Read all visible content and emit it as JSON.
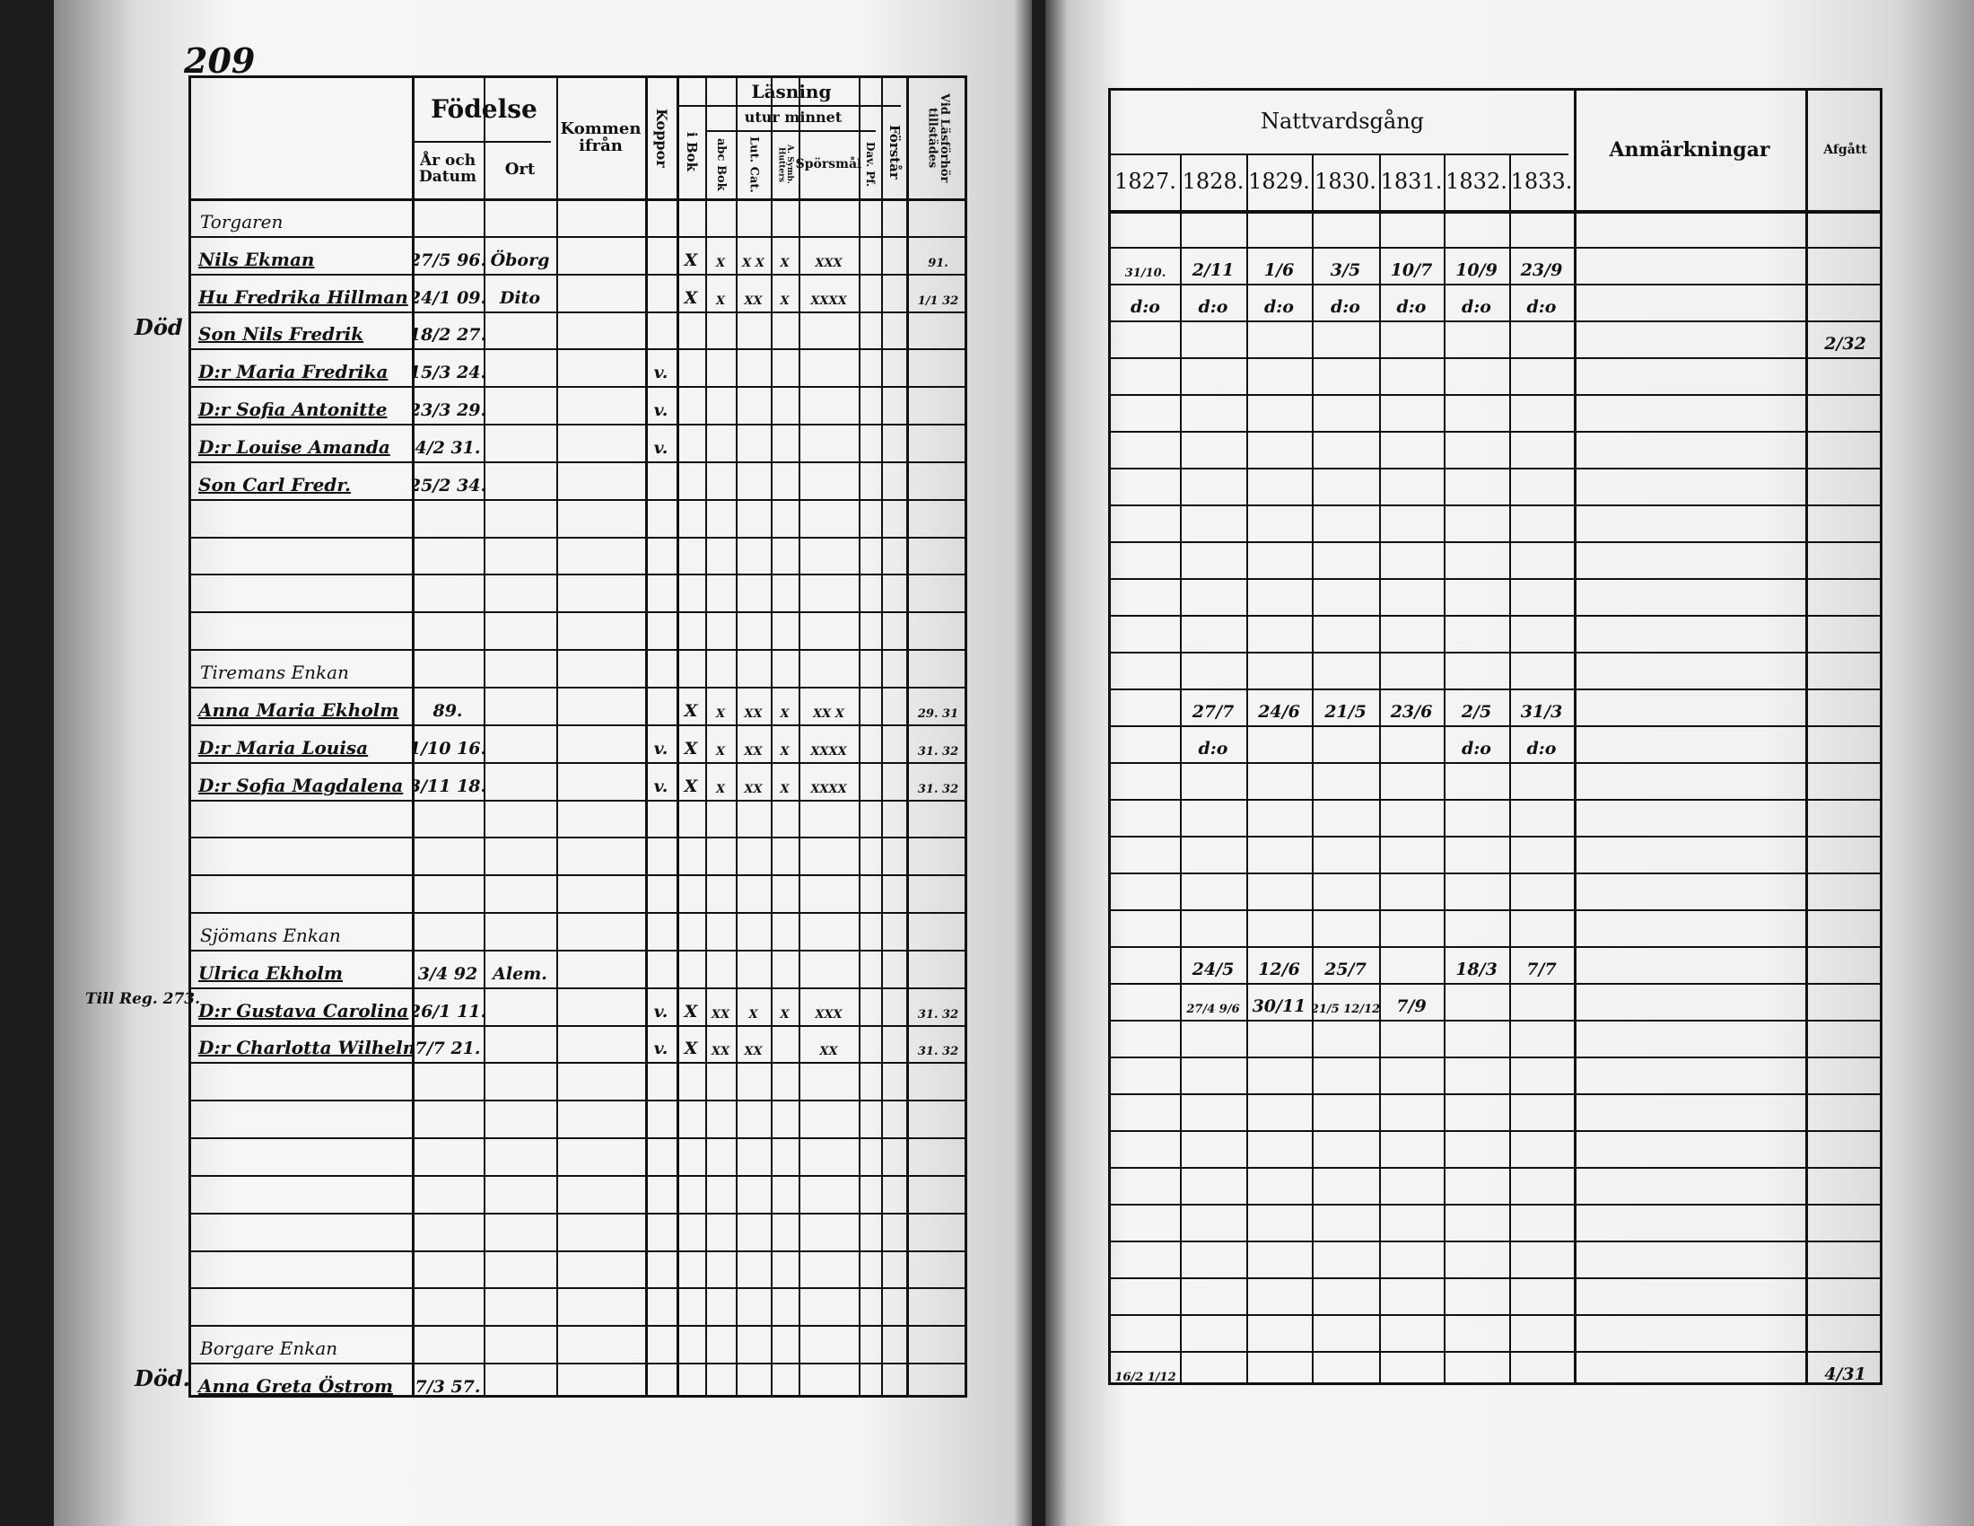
{
  "left_page": {
    "page_number": "209",
    "headers": {
      "fodelse": "Födelse",
      "ar_och_datum": "År och Datum",
      "ort": "Ort",
      "kommen_ifran": "Kommen ifrån",
      "koppor": "Koppor",
      "lasning": "Läsning",
      "utur_minnet": "utur minnet",
      "i_bok": "i Bok",
      "abc_bok": "abc Bok",
      "lut_cat": "Lut. Cat.",
      "a_symb": "A. Symb. Hutters",
      "sporsmal": "Spörsmål",
      "dav_pf": "Dav. Pf.",
      "forstar": "Förstår",
      "vid_lasforhor": "Vid Läsförhör tillstädes"
    },
    "margin_notes": [
      {
        "row": 3,
        "text": "Död"
      },
      {
        "row": 21,
        "text": "Till Reg. 273."
      },
      {
        "row": 31,
        "text": "Död."
      }
    ],
    "rows": [
      {
        "heading": "Torgaren"
      },
      {
        "name": "Nils Ekman",
        "born": "27/5 96.",
        "place": "Öborg",
        "ibok": "X",
        "abc": "X",
        "lut": "X X",
        "symb": "X",
        "spors": "XXX",
        "forhor": "91."
      },
      {
        "name": "Hu Fredrika Hillman",
        "born": "24/1 09.",
        "place": "Dito",
        "ibok": "X",
        "abc": "X",
        "lut": "XX",
        "symb": "X",
        "spors": "XXXX",
        "forhor": "1/1 32"
      },
      {
        "name": "Son Nils Fredrik",
        "born": "18/2 27."
      },
      {
        "name": "D:r Maria Fredrika",
        "born": "15/3 24.",
        "koppor": "v."
      },
      {
        "name": "D:r Sofia Antonitte",
        "born": "23/3 29.",
        "koppor": "v."
      },
      {
        "name": "D:r Louise Amanda",
        "born": "4/2 31.",
        "koppor": "v."
      },
      {
        "name": "Son Carl Fredr.",
        "born": "25/2 34."
      },
      {},
      {},
      {},
      {},
      {
        "heading": "Tiremans Enkan"
      },
      {
        "name": "Anna Maria Ekholm",
        "born": "89.",
        "ibok": "X",
        "abc": "X",
        "lut": "XX",
        "symb": "X",
        "spors": "XX X",
        "forhor": "29. 31"
      },
      {
        "name": "D:r Maria Louisa",
        "born": "1/10 16.",
        "koppor": "v.",
        "ibok": "X",
        "abc": "X",
        "lut": "XX",
        "symb": "X",
        "spors": "XXXX",
        "forhor": "31. 32"
      },
      {
        "name": "D:r Sofia Magdalena",
        "born": "3/11 18.",
        "koppor": "v.",
        "ibok": "X",
        "abc": "X",
        "lut": "XX",
        "symb": "X",
        "spors": "XXXX",
        "forhor": "31. 32"
      },
      {},
      {},
      {},
      {
        "heading": "Sjömans Enkan"
      },
      {
        "name": "Ulrica Ekholm",
        "born": "3/4 92",
        "place": "Alem."
      },
      {
        "name": "D:r Gustava Carolina",
        "born": "26/1 11.",
        "koppor": "v.",
        "ibok": "X",
        "abc": "XX",
        "lut": "X",
        "symb": "X",
        "spors": "XXX",
        "forhor": "31. 32"
      },
      {
        "name": "D:r Charlotta Wilhelmina",
        "born": "7/7 21.",
        "koppor": "v.",
        "ibok": "X",
        "abc": "XX",
        "lut": "XX",
        "spors": "XX",
        "forhor": "31. 32"
      },
      {},
      {},
      {},
      {},
      {},
      {},
      {},
      {
        "heading": "Borgare Enkan"
      },
      {
        "name": "Anna Greta Östrom",
        "born": "7/3 57."
      }
    ]
  },
  "right_page": {
    "headers": {
      "nattvardsgang": "Nattvardsgång",
      "years": [
        "1827.",
        "1828.",
        "1829.",
        "1830.",
        "1831.",
        "1832.",
        "1833."
      ],
      "anmarkningar": "Anmärkningar",
      "afgatt": "Afgått"
    },
    "rows": [
      {},
      {
        "y": [
          "31/10.",
          "2/11",
          "1/6",
          "3/5",
          "10/7",
          "10/9",
          "23/9"
        ]
      },
      {
        "y": [
          "d:o",
          "d:o",
          "d:o",
          "d:o",
          "d:o",
          "d:o",
          "d:o"
        ]
      },
      {
        "afgatt": "2/32"
      },
      {},
      {},
      {},
      {},
      {},
      {},
      {},
      {},
      {},
      {
        "y": [
          "",
          "27/7",
          "24/6",
          "21/5",
          "23/6",
          "2/5",
          "31/3"
        ]
      },
      {
        "y": [
          "",
          "d:o",
          "",
          "",
          "",
          "d:o",
          "d:o"
        ]
      },
      {},
      {},
      {},
      {},
      {},
      {
        "y": [
          "",
          "24/5",
          "12/6",
          "25/7",
          "",
          "18/3",
          "7/7"
        ]
      },
      {
        "y": [
          "",
          "27/4 9/6",
          "30/11",
          "21/5 12/12",
          "7/9",
          "",
          ""
        ]
      },
      {},
      {},
      {},
      {},
      {},
      {},
      {},
      {},
      {},
      {
        "y": [
          "16/2 1/12",
          "",
          "",
          "",
          "",
          "",
          ""
        ],
        "afgatt": "4/31"
      }
    ]
  }
}
